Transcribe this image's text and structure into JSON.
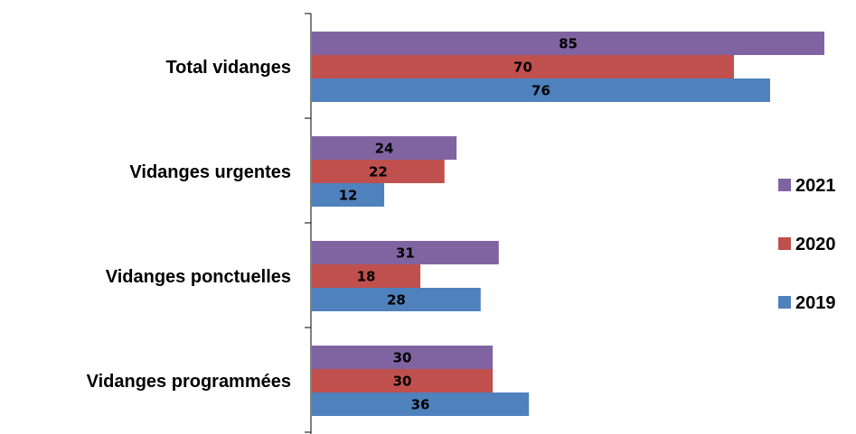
{
  "chart_data": {
    "type": "bar",
    "orientation": "horizontal",
    "categories": [
      "Total vidanges",
      "Vidanges urgentes",
      "Vidanges ponctuelles",
      "Vidanges programmées"
    ],
    "series": [
      {
        "name": "2021",
        "color": "#8064A2",
        "values": [
          85,
          24,
          31,
          30
        ]
      },
      {
        "name": "2020",
        "color": "#C0504D",
        "values": [
          70,
          22,
          18,
          30
        ]
      },
      {
        "name": "2019",
        "color": "#4F81BD",
        "values": [
          76,
          12,
          28,
          36
        ]
      }
    ],
    "title": "",
    "xlabel": "",
    "ylabel": "",
    "xlim": [
      0,
      85
    ],
    "grid": false,
    "legend_position": "right",
    "data_labels": true
  }
}
